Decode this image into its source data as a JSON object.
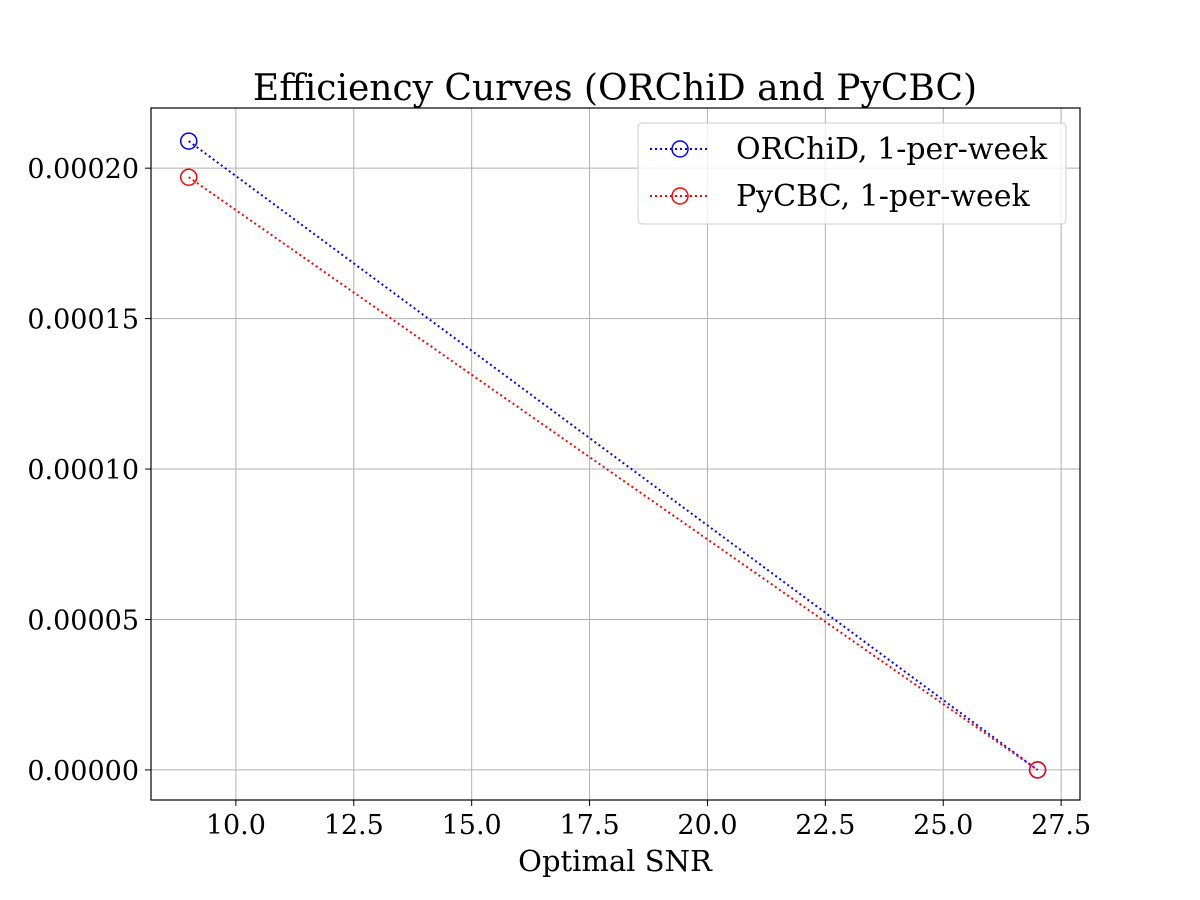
{
  "chart_data": {
    "type": "line",
    "title": "Efficiency Curves (ORChiD and PyCBC)",
    "xlabel": "Optimal SNR",
    "ylabel": "",
    "xlim": [
      8.2,
      27.9
    ],
    "ylim": [
      -1e-05,
      0.00022
    ],
    "x_ticks": [
      10.0,
      12.5,
      15.0,
      17.5,
      20.0,
      22.5,
      25.0,
      27.5
    ],
    "x_tick_labels": [
      "10.0",
      "12.5",
      "15.0",
      "17.5",
      "20.0",
      "22.5",
      "25.0",
      "27.5"
    ],
    "y_ticks": [
      0.0,
      5e-05,
      0.0001,
      0.00015,
      0.0002
    ],
    "y_tick_labels": [
      "0.00000",
      "0.00005",
      "0.00010",
      "0.00015",
      "0.00020"
    ],
    "grid": true,
    "legend_position": "top-right",
    "series": [
      {
        "name": "ORChiD, 1-per-week",
        "color": "#0000ff",
        "line_style": "dotted",
        "marker": "open-circle",
        "x": [
          9.0,
          27.0
        ],
        "y": [
          0.000209,
          0.0
        ]
      },
      {
        "name": "PyCBC, 1-per-week",
        "color": "#ff0000",
        "line_style": "dotted",
        "marker": "open-circle",
        "x": [
          9.0,
          27.0
        ],
        "y": [
          0.000197,
          0.0
        ]
      }
    ]
  }
}
